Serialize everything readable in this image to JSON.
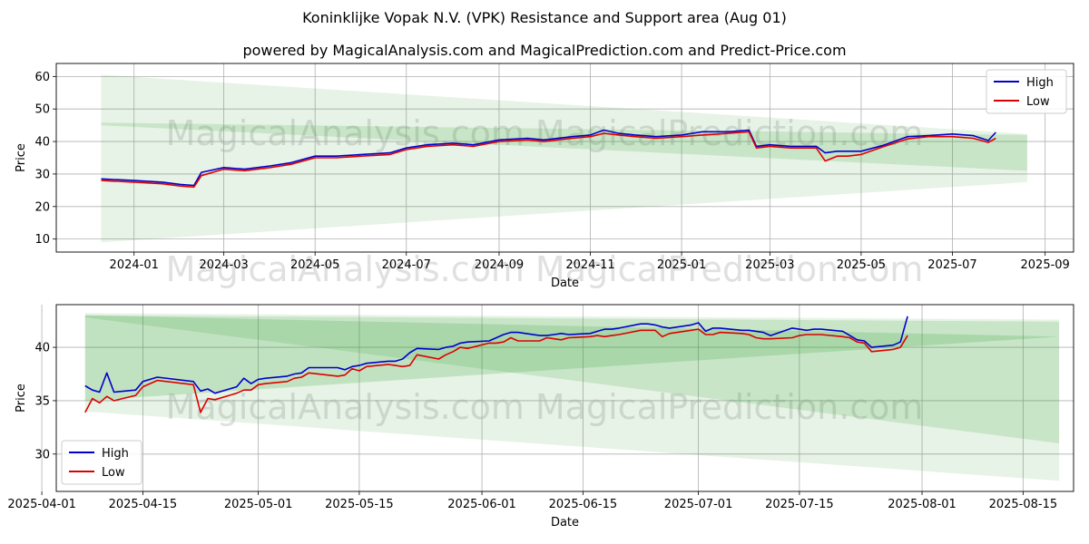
{
  "title": "Koninklijke Vopak N.V. (VPK) Resistance and Support area (Aug 01)",
  "subtitle": "powered by MagicalAnalysis.com and MagicalPrediction.com and Predict-Price.com",
  "watermark_top": "MagicalAnalysis.com    MagicalPrediction.com",
  "watermark_bottom": "MagicalAnalysis.com    MagicalPrediction.com",
  "colors": {
    "high": "#0000cc",
    "low": "#dd0000",
    "band": "#2e9e2e",
    "grid": "#b0b0b0"
  },
  "chart_data": [
    {
      "type": "line",
      "xlabel": "Date",
      "ylabel": "Price",
      "xlim": [
        "2023-11-10",
        "2025-09-20"
      ],
      "ylim": [
        6,
        64
      ],
      "grid": true,
      "legend": "top-right",
      "x_ticks": [
        "2024-01",
        "2024-03",
        "2024-05",
        "2024-07",
        "2024-09",
        "2024-11",
        "2025-01",
        "2025-03",
        "2025-05",
        "2025-07",
        "2025-09"
      ],
      "y_ticks": [
        10,
        20,
        30,
        40,
        50,
        60
      ],
      "series": [
        {
          "name": "High",
          "x": [
            "2023-12-10",
            "2024-01-01",
            "2024-01-20",
            "2024-02-01",
            "2024-02-10",
            "2024-02-15",
            "2024-03-01",
            "2024-03-15",
            "2024-04-01",
            "2024-04-15",
            "2024-05-01",
            "2024-05-15",
            "2024-06-01",
            "2024-06-20",
            "2024-07-01",
            "2024-07-15",
            "2024-08-01",
            "2024-08-15",
            "2024-09-01",
            "2024-09-20",
            "2024-10-01",
            "2024-10-20",
            "2024-11-01",
            "2024-11-10",
            "2024-11-20",
            "2024-12-01",
            "2024-12-15",
            "2025-01-01",
            "2025-01-15",
            "2025-02-01",
            "2025-02-15",
            "2025-02-20",
            "2025-03-01",
            "2025-03-15",
            "2025-04-01",
            "2025-04-07",
            "2025-04-15",
            "2025-04-22",
            "2025-05-01",
            "2025-05-15",
            "2025-06-01",
            "2025-06-15",
            "2025-07-01",
            "2025-07-15",
            "2025-07-25",
            "2025-07-30"
          ],
          "values": [
            28.5,
            28.0,
            27.5,
            26.8,
            26.5,
            30.5,
            32.0,
            31.5,
            32.5,
            33.5,
            35.5,
            35.5,
            36.0,
            36.5,
            38.0,
            39.0,
            39.5,
            39.0,
            40.5,
            41.0,
            40.5,
            41.5,
            42.0,
            43.5,
            42.5,
            42.0,
            41.5,
            42.0,
            43.0,
            43.0,
            43.5,
            38.5,
            39.0,
            38.5,
            38.5,
            36.5,
            37.0,
            37.0,
            37.0,
            38.7,
            41.5,
            41.8,
            42.3,
            41.8,
            40.3,
            42.8
          ]
        },
        {
          "name": "Low",
          "x": [
            "2023-12-10",
            "2024-01-01",
            "2024-01-20",
            "2024-02-01",
            "2024-02-10",
            "2024-02-15",
            "2024-03-01",
            "2024-03-15",
            "2024-04-01",
            "2024-04-15",
            "2024-05-01",
            "2024-05-15",
            "2024-06-01",
            "2024-06-20",
            "2024-07-01",
            "2024-07-15",
            "2024-08-01",
            "2024-08-15",
            "2024-09-01",
            "2024-09-20",
            "2024-10-01",
            "2024-10-20",
            "2024-11-01",
            "2024-11-10",
            "2024-11-20",
            "2024-12-01",
            "2024-12-15",
            "2025-01-01",
            "2025-01-15",
            "2025-02-01",
            "2025-02-15",
            "2025-02-20",
            "2025-03-01",
            "2025-03-15",
            "2025-04-01",
            "2025-04-07",
            "2025-04-15",
            "2025-04-22",
            "2025-05-01",
            "2025-05-15",
            "2025-06-01",
            "2025-06-15",
            "2025-07-01",
            "2025-07-15",
            "2025-07-25",
            "2025-07-30"
          ],
          "values": [
            28.0,
            27.5,
            27.0,
            26.3,
            26.0,
            29.5,
            31.5,
            31.0,
            32.0,
            33.0,
            35.0,
            35.0,
            35.5,
            36.0,
            37.5,
            38.5,
            39.0,
            38.5,
            40.0,
            40.5,
            40.0,
            41.0,
            41.5,
            42.5,
            42.0,
            41.5,
            41.0,
            41.5,
            42.0,
            42.5,
            43.0,
            38.0,
            38.5,
            38.0,
            38.0,
            34.0,
            35.5,
            35.5,
            36.0,
            38.3,
            40.8,
            41.5,
            41.5,
            41.0,
            39.7,
            41.0
          ]
        }
      ],
      "bands": [
        {
          "x": [
            "2023-12-10",
            "2025-08-20"
          ],
          "upper": [
            60.5,
            42.3
          ],
          "lower": [
            9.0,
            27.5
          ]
        },
        {
          "x": [
            "2023-12-10",
            "2025-08-20"
          ],
          "upper": [
            45.8,
            42.0
          ],
          "lower": [
            45.0,
            31.0
          ]
        }
      ]
    },
    {
      "type": "line",
      "xlabel": "Date",
      "ylabel": "Price",
      "xlim": [
        "2025-04-03",
        "2025-08-22"
      ],
      "ylim": [
        26.5,
        44
      ],
      "grid": true,
      "legend": "bottom-left",
      "x_ticks": [
        "2025-04-01",
        "2025-04-15",
        "2025-05-01",
        "2025-05-15",
        "2025-06-01",
        "2025-06-15",
        "2025-07-01",
        "2025-07-15",
        "2025-08-01",
        "2025-08-15"
      ],
      "y_ticks": [
        30,
        35,
        40
      ],
      "series": [
        {
          "name": "High",
          "x": [
            "2025-04-07",
            "2025-04-08",
            "2025-04-09",
            "2025-04-10",
            "2025-04-11",
            "2025-04-14",
            "2025-04-15",
            "2025-04-17",
            "2025-04-22",
            "2025-04-23",
            "2025-04-24",
            "2025-04-25",
            "2025-04-28",
            "2025-04-29",
            "2025-04-30",
            "2025-05-01",
            "2025-05-02",
            "2025-05-05",
            "2025-05-06",
            "2025-05-07",
            "2025-05-08",
            "2025-05-12",
            "2025-05-13",
            "2025-05-14",
            "2025-05-15",
            "2025-05-16",
            "2025-05-19",
            "2025-05-20",
            "2025-05-21",
            "2025-05-22",
            "2025-05-23",
            "2025-05-26",
            "2025-05-27",
            "2025-05-28",
            "2025-05-29",
            "2025-05-30",
            "2025-06-02",
            "2025-06-03",
            "2025-06-04",
            "2025-06-05",
            "2025-06-06",
            "2025-06-09",
            "2025-06-10",
            "2025-06-11",
            "2025-06-12",
            "2025-06-13",
            "2025-06-16",
            "2025-06-17",
            "2025-06-18",
            "2025-06-19",
            "2025-06-20",
            "2025-06-23",
            "2025-06-24",
            "2025-06-25",
            "2025-06-26",
            "2025-06-27",
            "2025-06-30",
            "2025-07-01",
            "2025-07-02",
            "2025-07-03",
            "2025-07-04",
            "2025-07-07",
            "2025-07-08",
            "2025-07-09",
            "2025-07-10",
            "2025-07-11",
            "2025-07-14",
            "2025-07-15",
            "2025-07-16",
            "2025-07-17",
            "2025-07-18",
            "2025-07-21",
            "2025-07-22",
            "2025-07-23",
            "2025-07-24",
            "2025-07-25",
            "2025-07-28",
            "2025-07-29",
            "2025-07-30"
          ],
          "values": [
            36.4,
            36.0,
            35.8,
            37.6,
            35.8,
            36.0,
            36.8,
            37.2,
            36.8,
            35.9,
            36.1,
            35.7,
            36.3,
            37.1,
            36.6,
            37.0,
            37.1,
            37.3,
            37.5,
            37.6,
            38.1,
            38.1,
            37.9,
            38.2,
            38.3,
            38.5,
            38.7,
            38.7,
            38.9,
            39.5,
            39.9,
            39.8,
            40.0,
            40.1,
            40.4,
            40.5,
            40.6,
            40.9,
            41.2,
            41.4,
            41.4,
            41.1,
            41.1,
            41.2,
            41.3,
            41.2,
            41.3,
            41.5,
            41.7,
            41.7,
            41.8,
            42.2,
            42.2,
            42.1,
            41.9,
            41.8,
            42.1,
            42.3,
            41.5,
            41.8,
            41.8,
            41.6,
            41.6,
            41.5,
            41.4,
            41.1,
            41.8,
            41.7,
            41.6,
            41.7,
            41.7,
            41.5,
            41.1,
            40.7,
            40.6,
            40.0,
            40.2,
            40.5,
            42.9
          ]
        },
        {
          "name": "Low",
          "x": [
            "2025-04-07",
            "2025-04-08",
            "2025-04-09",
            "2025-04-10",
            "2025-04-11",
            "2025-04-14",
            "2025-04-15",
            "2025-04-17",
            "2025-04-22",
            "2025-04-23",
            "2025-04-24",
            "2025-04-25",
            "2025-04-28",
            "2025-04-29",
            "2025-04-30",
            "2025-05-01",
            "2025-05-02",
            "2025-05-05",
            "2025-05-06",
            "2025-05-07",
            "2025-05-08",
            "2025-05-12",
            "2025-05-13",
            "2025-05-14",
            "2025-05-15",
            "2025-05-16",
            "2025-05-19",
            "2025-05-20",
            "2025-05-21",
            "2025-05-22",
            "2025-05-23",
            "2025-05-26",
            "2025-05-27",
            "2025-05-28",
            "2025-05-29",
            "2025-05-30",
            "2025-06-02",
            "2025-06-03",
            "2025-06-04",
            "2025-06-05",
            "2025-06-06",
            "2025-06-09",
            "2025-06-10",
            "2025-06-11",
            "2025-06-12",
            "2025-06-13",
            "2025-06-16",
            "2025-06-17",
            "2025-06-18",
            "2025-06-19",
            "2025-06-20",
            "2025-06-23",
            "2025-06-24",
            "2025-06-25",
            "2025-06-26",
            "2025-06-27",
            "2025-06-30",
            "2025-07-01",
            "2025-07-02",
            "2025-07-03",
            "2025-07-04",
            "2025-07-07",
            "2025-07-08",
            "2025-07-09",
            "2025-07-10",
            "2025-07-11",
            "2025-07-14",
            "2025-07-15",
            "2025-07-16",
            "2025-07-17",
            "2025-07-18",
            "2025-07-21",
            "2025-07-22",
            "2025-07-23",
            "2025-07-24",
            "2025-07-25",
            "2025-07-28",
            "2025-07-29",
            "2025-07-30"
          ],
          "values": [
            33.9,
            35.2,
            34.8,
            35.4,
            35.0,
            35.5,
            36.3,
            36.9,
            36.5,
            33.9,
            35.2,
            35.1,
            35.7,
            36.0,
            36.0,
            36.5,
            36.6,
            36.8,
            37.1,
            37.2,
            37.6,
            37.3,
            37.4,
            38.0,
            37.8,
            38.2,
            38.4,
            38.3,
            38.2,
            38.3,
            39.3,
            38.9,
            39.3,
            39.6,
            40.0,
            39.9,
            40.4,
            40.4,
            40.5,
            40.9,
            40.6,
            40.6,
            40.9,
            40.8,
            40.7,
            40.9,
            41.0,
            41.1,
            41.0,
            41.1,
            41.2,
            41.6,
            41.6,
            41.6,
            41.0,
            41.3,
            41.6,
            41.7,
            41.2,
            41.2,
            41.4,
            41.3,
            41.2,
            40.9,
            40.8,
            40.8,
            40.9,
            41.1,
            41.2,
            41.2,
            41.2,
            41.0,
            40.9,
            40.5,
            40.4,
            39.6,
            39.8,
            40.0,
            41.1
          ]
        }
      ],
      "bands": [
        {
          "x": [
            "2025-04-07",
            "2025-08-20"
          ],
          "upper": [
            43.2,
            42.6
          ],
          "lower": [
            34.0,
            27.5
          ]
        },
        {
          "x": [
            "2025-04-07",
            "2025-08-20"
          ],
          "upper": [
            43.0,
            42.4
          ],
          "lower": [
            42.8,
            31.0
          ]
        },
        {
          "x": [
            "2025-04-07",
            "2025-08-20"
          ],
          "upper": [
            43.0,
            41.0
          ],
          "lower": [
            35.0,
            41.0
          ]
        }
      ]
    }
  ]
}
